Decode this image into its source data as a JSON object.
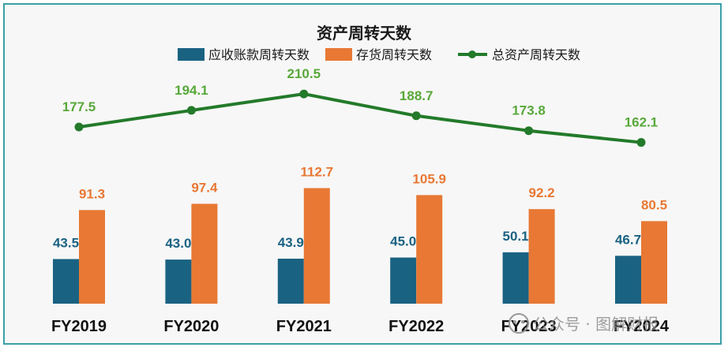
{
  "chart_data": {
    "type": "bar",
    "title": "资产周转天数",
    "categories": [
      "FY2019",
      "FY2020",
      "FY2021",
      "FY2022",
      "FY2023",
      "FY2024"
    ],
    "series": [
      {
        "name": "应收账款周转天数",
        "kind": "bar",
        "color": "#1a6282",
        "values": [
          43.5,
          43.0,
          43.9,
          45.0,
          50.1,
          46.7
        ]
      },
      {
        "name": "存货周转天数",
        "kind": "bar",
        "color": "#e87834",
        "values": [
          91.3,
          97.4,
          112.7,
          105.9,
          92.2,
          80.5
        ]
      },
      {
        "name": "总资产周转天数",
        "kind": "line",
        "color": "#237a2a",
        "label_color": "#58a83a",
        "values": [
          177.5,
          194.1,
          210.5,
          188.7,
          173.8,
          162.1
        ]
      }
    ],
    "legend": "top-center",
    "grid": false
  },
  "watermark": {
    "text": "公众号 · 图解财报"
  }
}
